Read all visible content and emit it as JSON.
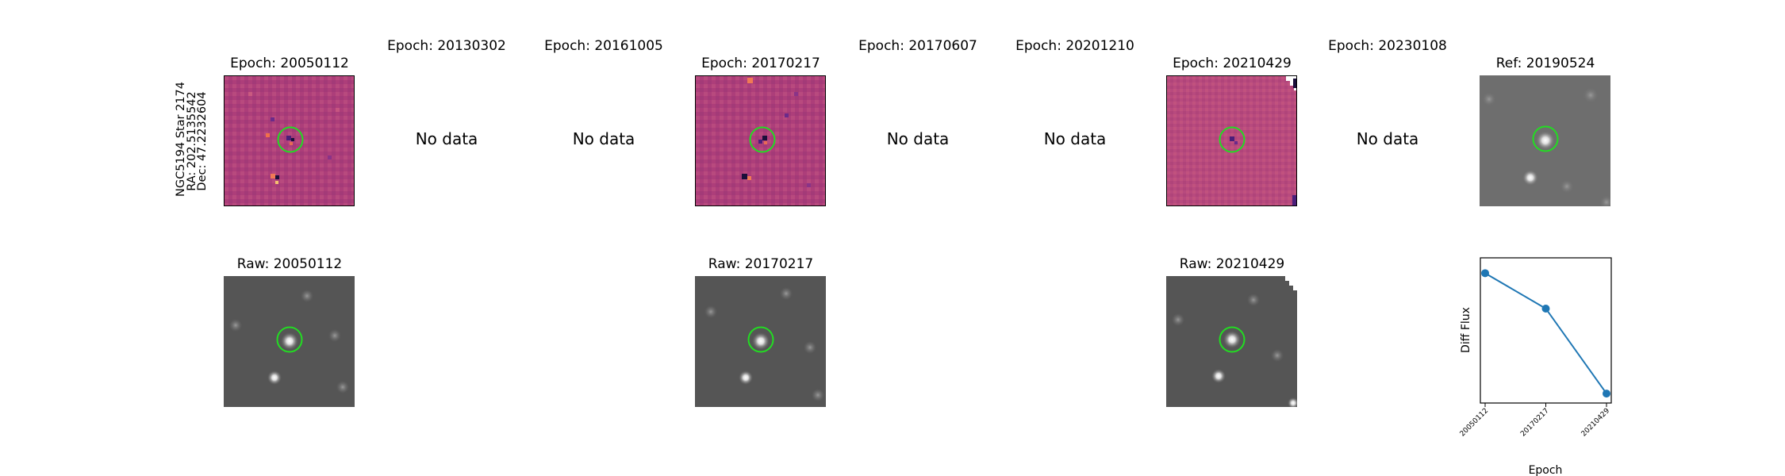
{
  "target": {
    "name": "NGC5194 Star 2174",
    "ra_label": "RA: 202.5135542",
    "dec_label": "Dec: 47.2232604"
  },
  "epochs": [
    {
      "title": "Epoch: 20050112",
      "has_data": true
    },
    {
      "title": "Epoch: 20130302",
      "has_data": false,
      "message": "No data"
    },
    {
      "title": "Epoch: 20161005",
      "has_data": false,
      "message": "No data"
    },
    {
      "title": "Epoch: 20170217",
      "has_data": true
    },
    {
      "title": "Epoch: 20170607",
      "has_data": false,
      "message": "No data"
    },
    {
      "title": "Epoch: 20201210",
      "has_data": false,
      "message": "No data"
    },
    {
      "title": "Epoch: 20210429",
      "has_data": true
    },
    {
      "title": "Epoch: 20230108",
      "has_data": false,
      "message": "No data"
    }
  ],
  "reference": {
    "title": "Ref: 20190524"
  },
  "raw": [
    {
      "title": "Raw: 20050112"
    },
    {
      "title": "Raw: 20170217"
    },
    {
      "title": "Raw: 20210429"
    }
  ],
  "colors": {
    "diff_background": "#b0407a",
    "raw_background": "#555555",
    "circle": "#22dd22",
    "series": "#1f77b4"
  },
  "chart_data": {
    "type": "line",
    "x": [
      "20050112",
      "20170217",
      "20210429"
    ],
    "y": [
      0.92,
      0.62,
      -0.1
    ],
    "ylim": [
      -0.18,
      1.05
    ],
    "xlabel": "Epoch",
    "ylabel": "Diff Flux",
    "y_ticks_shown": false,
    "grid": false
  }
}
